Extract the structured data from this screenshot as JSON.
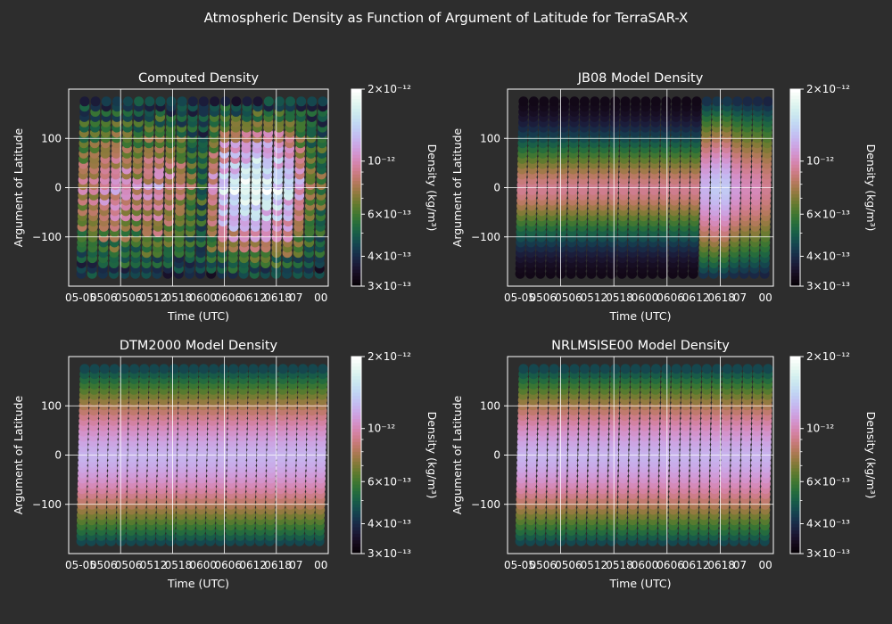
{
  "title": "Atmospheric Density as Function of Argument of Latitude for TerraSAR-X",
  "colors": {
    "background": "#2d2d2d",
    "axes_edge": "#ffffff",
    "grid": "#ffffff",
    "text": "#ffffff"
  },
  "colormap": "cubehelix",
  "chart_data": [
    {
      "type": "scatter",
      "title": "Computed Density",
      "xlabel": "Time (UTC)",
      "ylabel": "Argument of Latitude",
      "x_tick_labels": [
        "05-05",
        "05-05",
        "05-05",
        "05-05",
        "05-05",
        "05-05",
        "05-06",
        "05-06",
        "05-06",
        "05-06",
        "05-06",
        "05-06",
        "05-07",
        "05-07",
        "05-07 00"
      ],
      "x_tick_label_text": "05-05 05-06 05-06 05-06 05-06 05-06 05-06 05-06 05-07 00",
      "y_ticks": [
        -100,
        0,
        100
      ],
      "ylim": [
        -200,
        200
      ],
      "colorbar": {
        "label": "Density (kg/m³)",
        "scale": "log",
        "range": [
          3e-13,
          2e-12
        ],
        "tick_labels": [
          "2×10⁻¹²",
          "10⁻¹²",
          "6×10⁻¹³",
          "4×10⁻¹³",
          "3×10⁻¹³"
        ]
      },
      "description_of_values": "Per-orbit density varies strongly with time; low density (~3e-13) in early and late orbits near +/-180 deg, high density (~1.5e-12 to 2e-12) near 0 deg in the middle period",
      "orbit_density_profile": [
        0.45,
        0.5,
        0.55,
        0.6,
        0.55,
        0.5,
        0.55,
        0.6,
        0.5,
        0.45,
        0.35,
        0.2,
        0.55,
        0.8,
        0.85,
        0.9,
        0.95,
        0.9,
        0.85,
        0.8,
        0.6,
        0.35,
        0.3
      ]
    },
    {
      "type": "scatter",
      "title": "JB08 Model Density",
      "xlabel": "Time (UTC)",
      "ylabel": "Argument of Latitude",
      "y_ticks": [
        -100,
        0,
        100
      ],
      "ylim": [
        -200,
        200
      ],
      "colorbar": {
        "label": "Density (kg/m³)",
        "scale": "log",
        "range": [
          3e-13,
          2e-12
        ],
        "tick_labels": [
          "2×10⁻¹²",
          "10⁻¹²",
          "6×10⁻¹³",
          "4×10⁻¹³",
          "3×10⁻¹³"
        ]
      },
      "orbit_density_profile": [
        0.35,
        0.35,
        0.35,
        0.35,
        0.35,
        0.35,
        0.35,
        0.35,
        0.35,
        0.35,
        0.35,
        0.35,
        0.35,
        0.35,
        0.35,
        0.35,
        0.35,
        0.35,
        0.75,
        0.8,
        0.8,
        0.7,
        0.65,
        0.65,
        0.6
      ]
    },
    {
      "type": "scatter",
      "title": "DTM2000 Model Density",
      "xlabel": "Time (UTC)",
      "ylabel": "Argument of Latitude",
      "y_ticks": [
        -100,
        0,
        100
      ],
      "ylim": [
        -200,
        200
      ],
      "colorbar": {
        "label": "Density (kg/m³)",
        "scale": "log",
        "range": [
          3e-13,
          2e-12
        ],
        "tick_labels": [
          "2×10⁻¹²",
          "10⁻¹²",
          "6×10⁻¹³",
          "4×10⁻¹³",
          "3×10⁻¹³"
        ]
      },
      "orbit_density_profile": [
        0.72,
        0.72,
        0.72,
        0.72,
        0.72,
        0.72,
        0.72,
        0.72,
        0.72,
        0.72,
        0.72,
        0.72,
        0.72,
        0.72,
        0.72,
        0.72,
        0.72,
        0.72,
        0.72,
        0.72,
        0.72,
        0.72,
        0.72,
        0.72,
        0.72
      ]
    },
    {
      "type": "scatter",
      "title": "NRLMSISE00 Model Density",
      "xlabel": "Time (UTC)",
      "ylabel": "Argument of Latitude",
      "y_ticks": [
        -100,
        0,
        100
      ],
      "ylim": [
        -200,
        200
      ],
      "colorbar": {
        "label": "Density (kg/m³)",
        "scale": "log",
        "range": [
          3e-13,
          2e-12
        ],
        "tick_labels": [
          "2×10⁻¹²",
          "10⁻¹²",
          "6×10⁻¹³",
          "4×10⁻¹³",
          "3×10⁻¹³"
        ]
      },
      "orbit_density_profile": [
        0.72,
        0.72,
        0.72,
        0.72,
        0.72,
        0.72,
        0.72,
        0.72,
        0.72,
        0.72,
        0.72,
        0.72,
        0.72,
        0.72,
        0.72,
        0.72,
        0.72,
        0.72,
        0.72,
        0.72,
        0.72,
        0.72,
        0.72,
        0.72,
        0.72
      ]
    }
  ]
}
